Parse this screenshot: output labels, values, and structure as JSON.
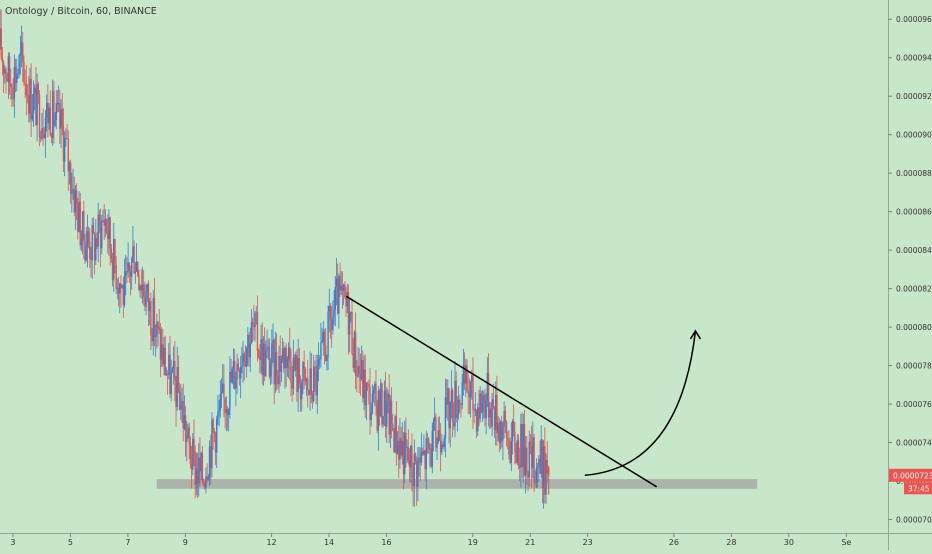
{
  "header": {
    "symbol_title": "Ontology / Bitcoin, 60, BINANCE"
  },
  "colors": {
    "background": "#c8e6c9",
    "up_candle": "#2f7fd6",
    "down_candle": "#e0524c",
    "price_tag": "#ef5350",
    "axis_text": "#333333",
    "support_zone": "#9e9e9e"
  },
  "chart_data": {
    "type": "candlestick",
    "title": "Ontology / Bitcoin, 60, BINANCE",
    "y_ticks": [
      "0.0000700",
      "0.0000720",
      "0.0000740",
      "0.0000760",
      "0.0000780",
      "0.0000800",
      "0.0000820",
      "0.0000840",
      "0.0000860",
      "0.0000880",
      "0.0000900",
      "0.0000920",
      "0.0000940",
      "0.0000960"
    ],
    "ylim": [
      6.93e-05,
      9.7e-05
    ],
    "x_ticks": [
      "3",
      "5",
      "7",
      "9",
      "12",
      "14",
      "16",
      "19",
      "21",
      "23",
      "26",
      "28",
      "30",
      "Se"
    ],
    "x_tick_days": [
      3,
      5,
      7,
      9,
      12,
      14,
      16,
      19,
      21,
      23,
      26,
      28,
      30,
      32
    ],
    "xlim_days": [
      2.55,
      33.45
    ],
    "current_price": "0.0000723",
    "countdown": "37:45",
    "price_path": [
      [
        2.55,
        9.45e-05
      ],
      [
        2.9,
        9.28e-05
      ],
      [
        3.3,
        9.38e-05
      ],
      [
        3.6,
        9.2e-05
      ],
      [
        4.0,
        9.1e-05
      ],
      [
        4.3,
        9.12e-05
      ],
      [
        4.7,
        9.03e-05
      ],
      [
        5.0,
        8.8e-05
      ],
      [
        5.4,
        8.48e-05
      ],
      [
        5.8,
        8.42e-05
      ],
      [
        6.2,
        8.58e-05
      ],
      [
        6.5,
        8.35e-05
      ],
      [
        6.9,
        8.15e-05
      ],
      [
        7.2,
        8.4e-05
      ],
      [
        7.6,
        8.18e-05
      ],
      [
        8.0,
        7.97e-05
      ],
      [
        8.4,
        7.75e-05
      ],
      [
        8.8,
        7.65e-05
      ],
      [
        9.1,
        7.38e-05
      ],
      [
        9.3,
        7.28e-05
      ],
      [
        9.6,
        7.22e-05
      ],
      [
        9.8,
        7.35e-05
      ],
      [
        10.2,
        7.55e-05
      ],
      [
        10.6,
        7.72e-05
      ],
      [
        11.0,
        7.9e-05
      ],
      [
        11.4,
        7.98e-05
      ],
      [
        11.7,
        7.85e-05
      ],
      [
        12.1,
        7.8e-05
      ],
      [
        12.5,
        7.88e-05
      ],
      [
        12.9,
        7.75e-05
      ],
      [
        13.3,
        7.68e-05
      ],
      [
        13.6,
        7.73e-05
      ],
      [
        14.0,
        7.98e-05
      ],
      [
        14.3,
        8.15e-05
      ],
      [
        14.7,
        8.08e-05
      ],
      [
        14.9,
        7.85e-05
      ],
      [
        15.2,
        7.7e-05
      ],
      [
        15.5,
        7.58e-05
      ],
      [
        15.9,
        7.6e-05
      ],
      [
        16.3,
        7.45e-05
      ],
      [
        16.6,
        7.35e-05
      ],
      [
        16.9,
        7.27e-05
      ],
      [
        17.2,
        7.3e-05
      ],
      [
        17.6,
        7.38e-05
      ],
      [
        18.0,
        7.52e-05
      ],
      [
        18.4,
        7.63e-05
      ],
      [
        18.8,
        7.7e-05
      ],
      [
        19.1,
        7.58e-05
      ],
      [
        19.5,
        7.65e-05
      ],
      [
        19.9,
        7.52e-05
      ],
      [
        20.3,
        7.4e-05
      ],
      [
        20.7,
        7.38e-05
      ],
      [
        21.1,
        7.3e-05
      ],
      [
        21.4,
        7.29e-05
      ],
      [
        21.6,
        7.23e-05
      ]
    ],
    "support_zone": {
      "y_low": 7.16e-05,
      "y_high": 7.21e-05,
      "x_start_day": 8.0,
      "x_end_day": 28.9
    },
    "trendline": {
      "start": [
        14.6,
        8.16e-05
      ],
      "end": [
        25.4,
        7.17e-05
      ]
    },
    "projection_arrow": {
      "start": [
        22.9,
        7.23e-05
      ],
      "mid": [
        26.2,
        7.27e-05
      ],
      "end": [
        26.75,
        7.98e-05
      ]
    }
  }
}
